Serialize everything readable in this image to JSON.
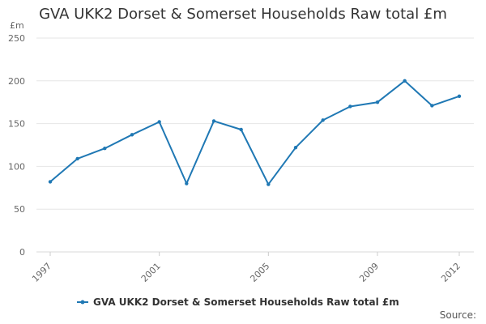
{
  "colors": {
    "series": "#1f78b4",
    "grid": "#e6e6e6",
    "text": "#333333"
  },
  "chart_data": {
    "type": "line",
    "title": "GVA UKK2 Dorset & Somerset Households Raw total £m",
    "unit_label": "£m",
    "xlabel": "",
    "ylabel": "",
    "ylim": [
      0,
      250
    ],
    "y_ticks": [
      0,
      50,
      100,
      150,
      200,
      250
    ],
    "x": [
      1997,
      1998,
      1999,
      2000,
      2001,
      2002,
      2003,
      2004,
      2005,
      2006,
      2007,
      2008,
      2009,
      2010,
      2011,
      2012
    ],
    "x_tick_labels": [
      "1997",
      "2001",
      "2005",
      "2009",
      "2012"
    ],
    "series": [
      {
        "name": "GVA UKK2 Dorset & Somerset Households Raw total £m",
        "values": [
          82,
          109,
          121,
          137,
          152,
          80,
          153,
          143,
          79,
          122,
          154,
          170,
          175,
          200,
          171,
          182
        ]
      }
    ],
    "grid": true,
    "legend_position": "bottom-center",
    "source": "Source:"
  }
}
